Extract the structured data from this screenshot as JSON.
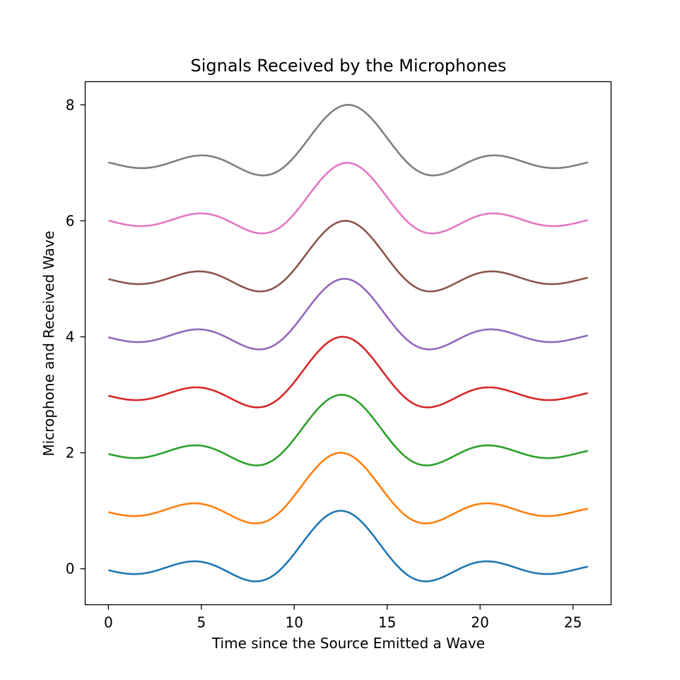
{
  "chart_data": {
    "type": "line",
    "title": "Signals Received by the Microphones",
    "xlabel": "Time since the Source Emitted a Wave",
    "ylabel": "Microphone and Received Wave",
    "xlim": [
      -1.25,
      27.05
    ],
    "ylim": [
      -0.62,
      8.4
    ],
    "xticks": [
      0,
      5,
      10,
      15,
      20,
      25
    ],
    "yticks": [
      0,
      2,
      4,
      6,
      8
    ],
    "grid": false,
    "x": [
      0,
      0.5,
      1,
      1.5,
      2,
      2.5,
      3,
      3.5,
      4,
      4.5,
      5,
      5.5,
      6,
      6.5,
      7,
      7.5,
      8,
      8.5,
      9,
      9.5,
      10,
      10.5,
      11,
      11.5,
      12,
      12.5,
      13,
      13.5,
      14,
      14.5,
      15,
      15.5,
      16,
      16.5,
      17,
      17.5,
      18,
      18.5,
      19,
      19.5,
      20,
      20.5,
      21,
      21.5,
      22,
      22.5,
      23,
      23.5,
      24,
      24.5,
      25,
      25.5,
      25.8
    ],
    "series": [
      {
        "color": "#1f77b4",
        "peak_x": 12.5,
        "offset": 0
      },
      {
        "color": "#ff7f0e",
        "peak_x": 12.5,
        "offset": 1
      },
      {
        "color": "#2ca02c",
        "peak_x": 12.55,
        "offset": 2
      },
      {
        "color": "#d62728",
        "peak_x": 12.6,
        "offset": 3
      },
      {
        "color": "#9467bd",
        "peak_x": 12.7,
        "offset": 4
      },
      {
        "color": "#8c564b",
        "peak_x": 12.75,
        "offset": 5
      },
      {
        "color": "#e377c2",
        "peak_x": 12.85,
        "offset": 6
      },
      {
        "color": "#7f7f7f",
        "peak_x": 12.9,
        "offset": 7
      }
    ]
  }
}
